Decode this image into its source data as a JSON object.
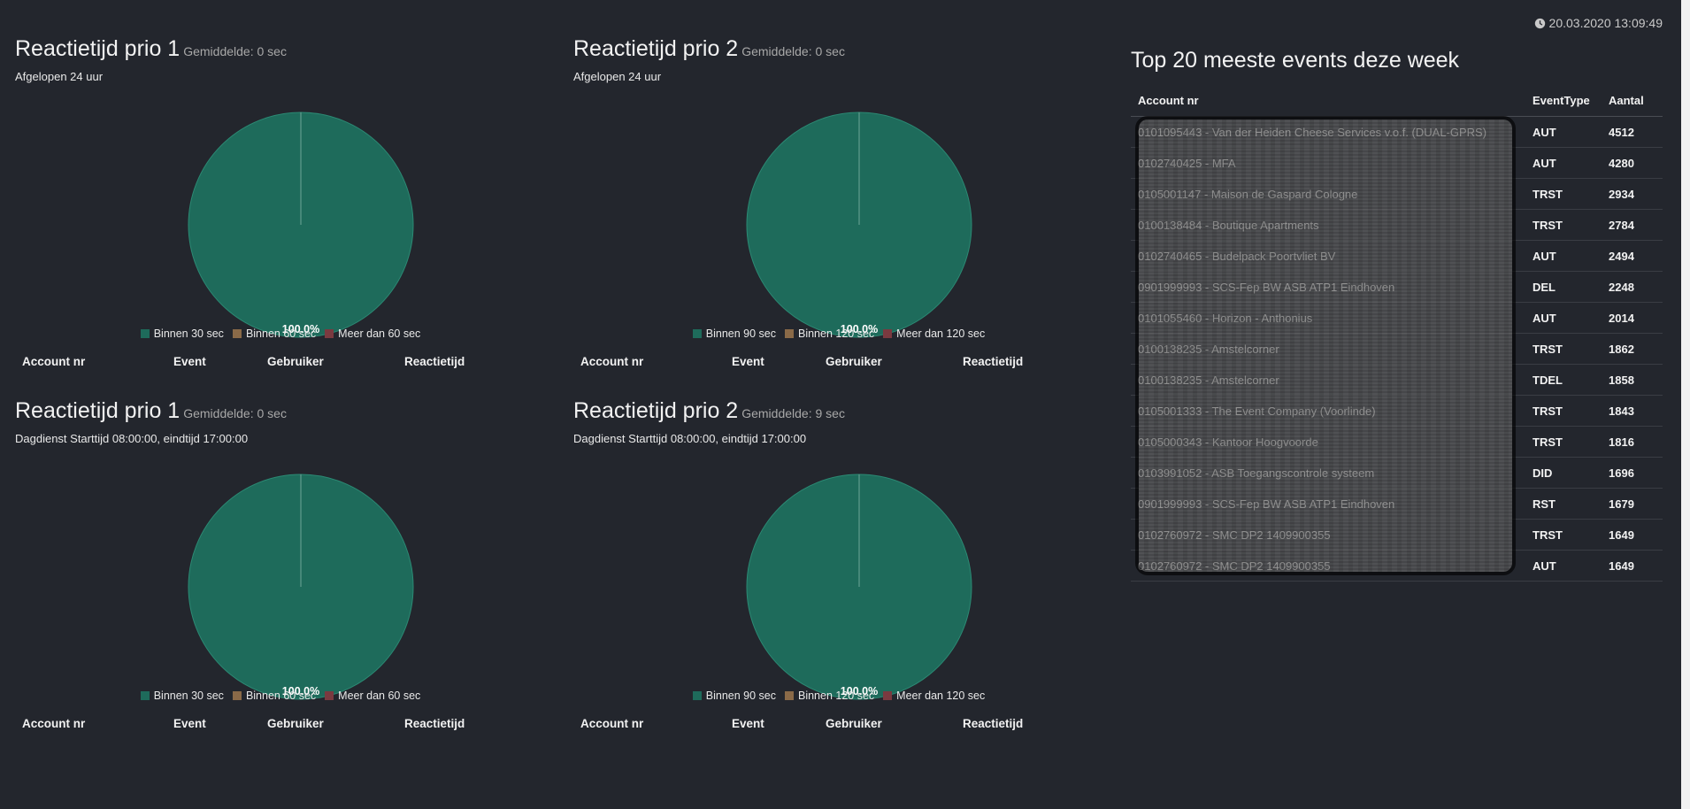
{
  "clock": "20.03.2020 13:09:49",
  "colors": {
    "green": "#1e6b5b",
    "brown": "#8a6a48",
    "red": "#7a3a40"
  },
  "panels": [
    {
      "title": "Reactietijd prio 1",
      "avg": "Gemiddelde: 0 sec",
      "sub": "Afgelopen 24 uur",
      "pct": "100.0%",
      "legend": [
        "Binnen 30 sec",
        "Binnen 60 sec",
        "Meer dan 60 sec"
      ],
      "headers": [
        "Account nr",
        "Event",
        "Gebruiker",
        "Reactietijd"
      ]
    },
    {
      "title": "Reactietijd prio 2",
      "avg": "Gemiddelde: 0 sec",
      "sub": "Afgelopen 24 uur",
      "pct": "100.0%",
      "legend": [
        "Binnen 90 sec",
        "Binnen 120 sec",
        "Meer dan 120 sec"
      ],
      "headers": [
        "Account nr",
        "Event",
        "Gebruiker",
        "Reactietijd"
      ]
    },
    {
      "title": "Reactietijd prio 1",
      "avg": "Gemiddelde: 0 sec",
      "sub": "Dagdienst Starttijd 08:00:00, eindtijd 17:00:00",
      "pct": "100.0%",
      "legend": [
        "Binnen 30 sec",
        "Binnen 60 sec",
        "Meer dan 60 sec"
      ],
      "headers": [
        "Account nr",
        "Event",
        "Gebruiker",
        "Reactietijd"
      ]
    },
    {
      "title": "Reactietijd prio 2",
      "avg": "Gemiddelde: 9 sec",
      "sub": "Dagdienst Starttijd 08:00:00, eindtijd 17:00:00",
      "pct": "100.0%",
      "legend": [
        "Binnen 90 sec",
        "Binnen 120 sec",
        "Meer dan 120 sec"
      ],
      "headers": [
        "Account nr",
        "Event",
        "Gebruiker",
        "Reactietijd"
      ]
    }
  ],
  "top20": {
    "title": "Top 20 meeste events deze week",
    "headers": [
      "Account nr",
      "EventType",
      "Aantal"
    ],
    "rows": [
      [
        "0101095443 - Van der Heiden Cheese Services v.o.f. (DUAL-GPRS)",
        "AUT",
        "4512"
      ],
      [
        "0102740425 - MFA",
        "AUT",
        "4280"
      ],
      [
        "0105001147 - Maison de Gaspard Cologne",
        "TRST",
        "2934"
      ],
      [
        "0100138484 - Boutique Apartments",
        "TRST",
        "2784"
      ],
      [
        "0102740465 - Budelpack Poortvliet BV",
        "AUT",
        "2494"
      ],
      [
        "0901999993 - SCS-Fep BW ASB ATP1 Eindhoven",
        "DEL",
        "2248"
      ],
      [
        "0101055460 - Horizon - Anthonius",
        "AUT",
        "2014"
      ],
      [
        "0100138235 - Amstelcorner",
        "TRST",
        "1862"
      ],
      [
        "0100138235 - Amstelcorner",
        "TDEL",
        "1858"
      ],
      [
        "0105001333 - The Event Company (Voorlinde)",
        "TRST",
        "1843"
      ],
      [
        "0105000343 - Kantoor Hoogvoorde",
        "TRST",
        "1816"
      ],
      [
        "0103991052 - ASB Toegangscontrole systeem",
        "DID",
        "1696"
      ],
      [
        "0901999993 - SCS-Fep BW ASB ATP1 Eindhoven",
        "RST",
        "1679"
      ],
      [
        "0102760972 - SMC DP2 1409900355",
        "TRST",
        "1649"
      ],
      [
        "0102760972 - SMC DP2 1409900355",
        "AUT",
        "1649"
      ]
    ]
  }
}
